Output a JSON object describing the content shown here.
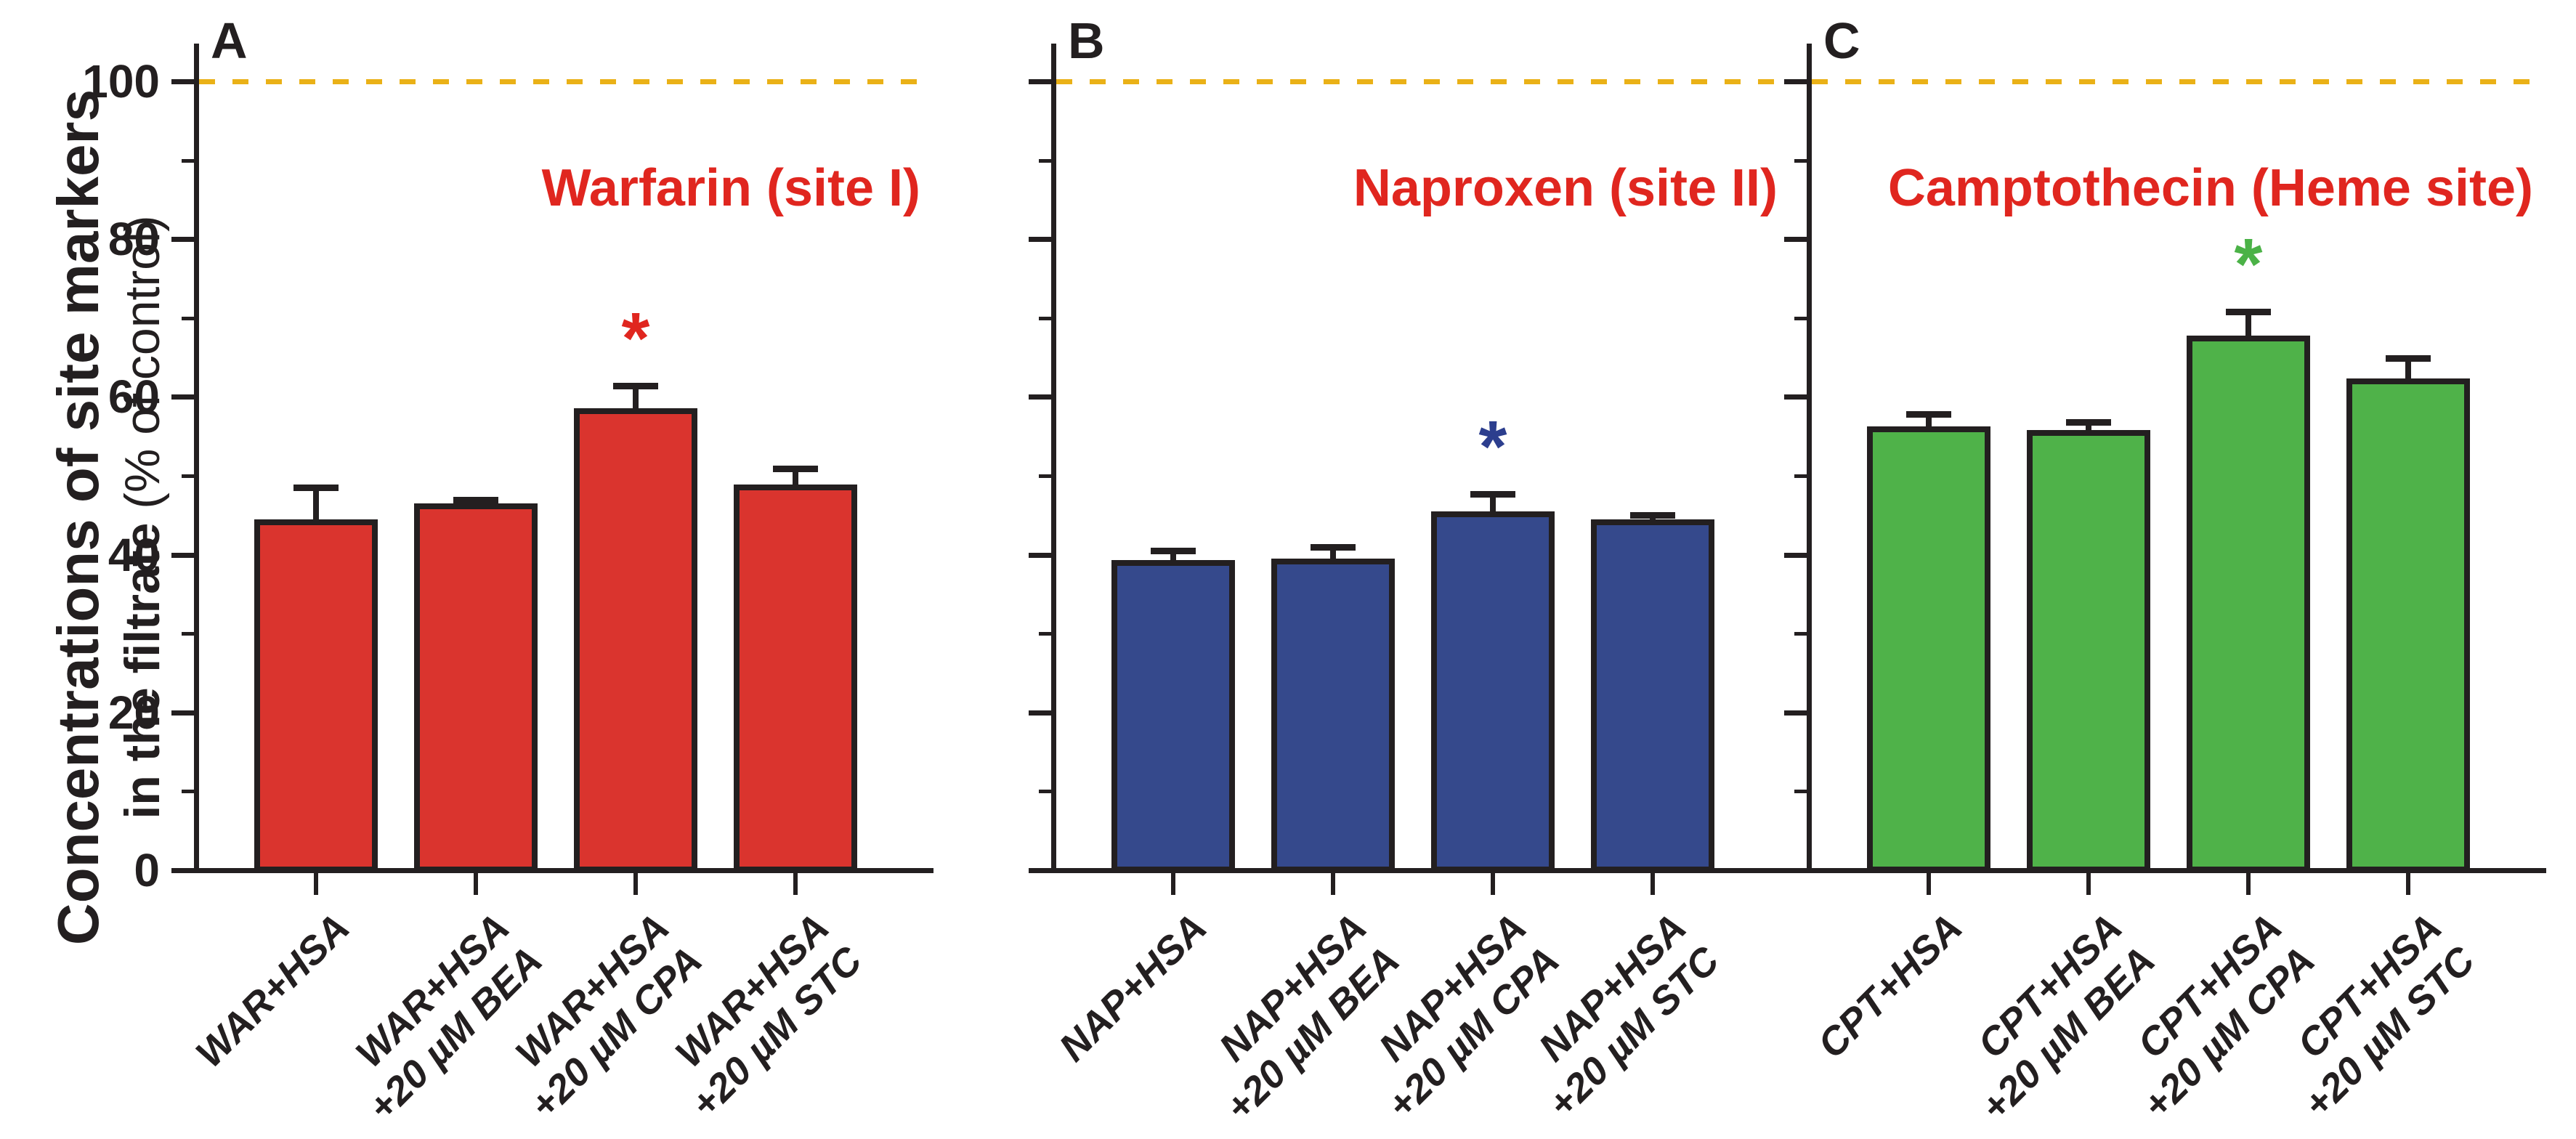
{
  "figure": {
    "ylabel": {
      "line1": "Concentrations of site markers",
      "line2_bold": "in the filtrate",
      "line2_rest": " (% of control)"
    },
    "y_axis": {
      "major_ticks": [
        0,
        20,
        40,
        60,
        80,
        100
      ],
      "minor_ticks": [
        10,
        30,
        50,
        70,
        90
      ],
      "range": [
        0,
        105
      ]
    },
    "reference_line": {
      "value": 100,
      "style": "dashed",
      "color": "#eab117"
    },
    "colors": {
      "axis": "#231f20",
      "reference": "#eab117",
      "title_red": "#e0261f",
      "bar_red": "#da342e",
      "bar_blue": "#35498c",
      "bar_green": "#4fb249",
      "asterisk_red": "#e0261f",
      "asterisk_blue": "#2c3e8e",
      "asterisk_green": "#4bb247"
    }
  },
  "chart_data": [
    {
      "type": "bar",
      "panel_letter": "A",
      "title": "Warfarin (site I)",
      "title_color": "#e0261f",
      "bar_color": "#da342e",
      "categories": [
        [
          "WAR+HSA"
        ],
        [
          "WAR+HSA",
          "+20 µM BEA"
        ],
        [
          "WAR+HSA",
          "+20 µM CPA"
        ],
        [
          "WAR+HSA",
          "+20 µM STC"
        ]
      ],
      "values": [
        44.5,
        46.5,
        58.6,
        48.9
      ],
      "errors": [
        4.0,
        0.5,
        2.8,
        2.0
      ],
      "significance": {
        "bar_index": 2,
        "symbol": "*",
        "color": "#e0261f"
      },
      "show_ytick_labels": true,
      "ylim": [
        0,
        105
      ],
      "ylabel_ticks": [
        "0",
        "20",
        "40",
        "60",
        "80",
        "100"
      ]
    },
    {
      "type": "bar",
      "panel_letter": "B",
      "title": "Naproxen (site II)",
      "title_color": "#e0261f",
      "bar_color": "#35498c",
      "categories": [
        [
          "NAP+HSA"
        ],
        [
          "NAP+HSA",
          "+20 µM BEA"
        ],
        [
          "NAP+HSA",
          "+20 µM CPA"
        ],
        [
          "NAP+HSA",
          "+20 µM STC"
        ]
      ],
      "values": [
        39.3,
        39.5,
        45.5,
        44.5
      ],
      "errors": [
        1.2,
        1.5,
        2.2,
        0.5
      ],
      "significance": {
        "bar_index": 2,
        "symbol": "*",
        "color": "#2c3e8e"
      },
      "show_ytick_labels": false,
      "ylim": [
        0,
        105
      ],
      "ylabel_ticks": []
    },
    {
      "type": "bar",
      "panel_letter": "C",
      "title": "Camptothecin (Heme site)",
      "title_color": "#e0261f",
      "bar_color": "#4fb249",
      "categories": [
        [
          "CPT+HSA"
        ],
        [
          "CPT+HSA",
          "+20 µM BEA"
        ],
        [
          "CPT+HSA",
          "+20 µM CPA"
        ],
        [
          "CPT+HSA",
          "+20 µM STC"
        ]
      ],
      "values": [
        56.3,
        55.8,
        67.8,
        62.3
      ],
      "errors": [
        1.5,
        1.0,
        3.0,
        2.6
      ],
      "significance": {
        "bar_index": 2,
        "symbol": "*",
        "color": "#4bb247"
      },
      "show_ytick_labels": false,
      "ylim": [
        0,
        105
      ],
      "ylabel_ticks": []
    }
  ]
}
